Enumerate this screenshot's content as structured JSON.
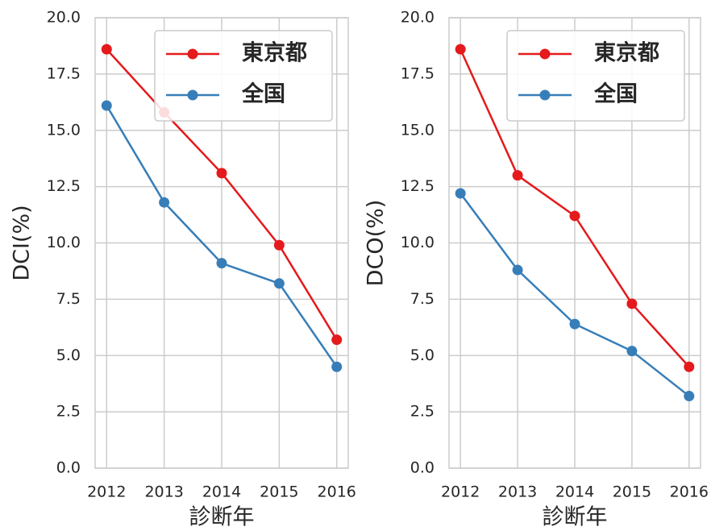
{
  "chart_data": [
    {
      "type": "line",
      "x": [
        2012,
        2013,
        2014,
        2015,
        2016
      ],
      "xlim": [
        2011.8,
        2016.2
      ],
      "xticks": [
        2012,
        2013,
        2014,
        2015,
        2016
      ],
      "ylabel": "DCI(%)",
      "xlabel": "診断年",
      "ylim": [
        0,
        20
      ],
      "yticks": [
        {
          "value": 0,
          "label": "0.0"
        },
        {
          "value": 2.5,
          "label": "2.5"
        },
        {
          "value": 5,
          "label": "5.0"
        },
        {
          "value": 7.5,
          "label": "7.5"
        },
        {
          "value": 10,
          "label": "10.0"
        },
        {
          "value": 12.5,
          "label": "12.5"
        },
        {
          "value": 15,
          "label": "15.0"
        },
        {
          "value": 17.5,
          "label": "17.5"
        },
        {
          "value": 20,
          "label": "20.0"
        }
      ],
      "grid": true,
      "legend": "upper right",
      "series": [
        {
          "name": "東京都",
          "color": "#e41a1c",
          "values": [
            18.6,
            15.8,
            13.1,
            9.9,
            5.7
          ]
        },
        {
          "name": "全国",
          "color": "#377eb8",
          "values": [
            16.1,
            11.8,
            9.1,
            8.2,
            4.5
          ]
        }
      ]
    },
    {
      "type": "line",
      "x": [
        2012,
        2013,
        2014,
        2015,
        2016
      ],
      "xlim": [
        2011.8,
        2016.2
      ],
      "xticks": [
        2012,
        2013,
        2014,
        2015,
        2016
      ],
      "ylabel": "DCO(%)",
      "xlabel": "診断年",
      "ylim": [
        0,
        20
      ],
      "yticks": [
        {
          "value": 0,
          "label": "0.0"
        },
        {
          "value": 2.5,
          "label": "2.5"
        },
        {
          "value": 5,
          "label": "5.0"
        },
        {
          "value": 7.5,
          "label": "7.5"
        },
        {
          "value": 10,
          "label": "10.0"
        },
        {
          "value": 12.5,
          "label": "12.5"
        },
        {
          "value": 15,
          "label": "15.0"
        },
        {
          "value": 17.5,
          "label": "17.5"
        },
        {
          "value": 20,
          "label": "20.0"
        }
      ],
      "grid": true,
      "legend": "upper right",
      "series": [
        {
          "name": "東京都",
          "color": "#e41a1c",
          "values": [
            18.6,
            13.0,
            11.2,
            7.3,
            4.5
          ]
        },
        {
          "name": "全国",
          "color": "#377eb8",
          "values": [
            12.2,
            8.8,
            6.4,
            5.2,
            3.2
          ]
        }
      ]
    }
  ]
}
